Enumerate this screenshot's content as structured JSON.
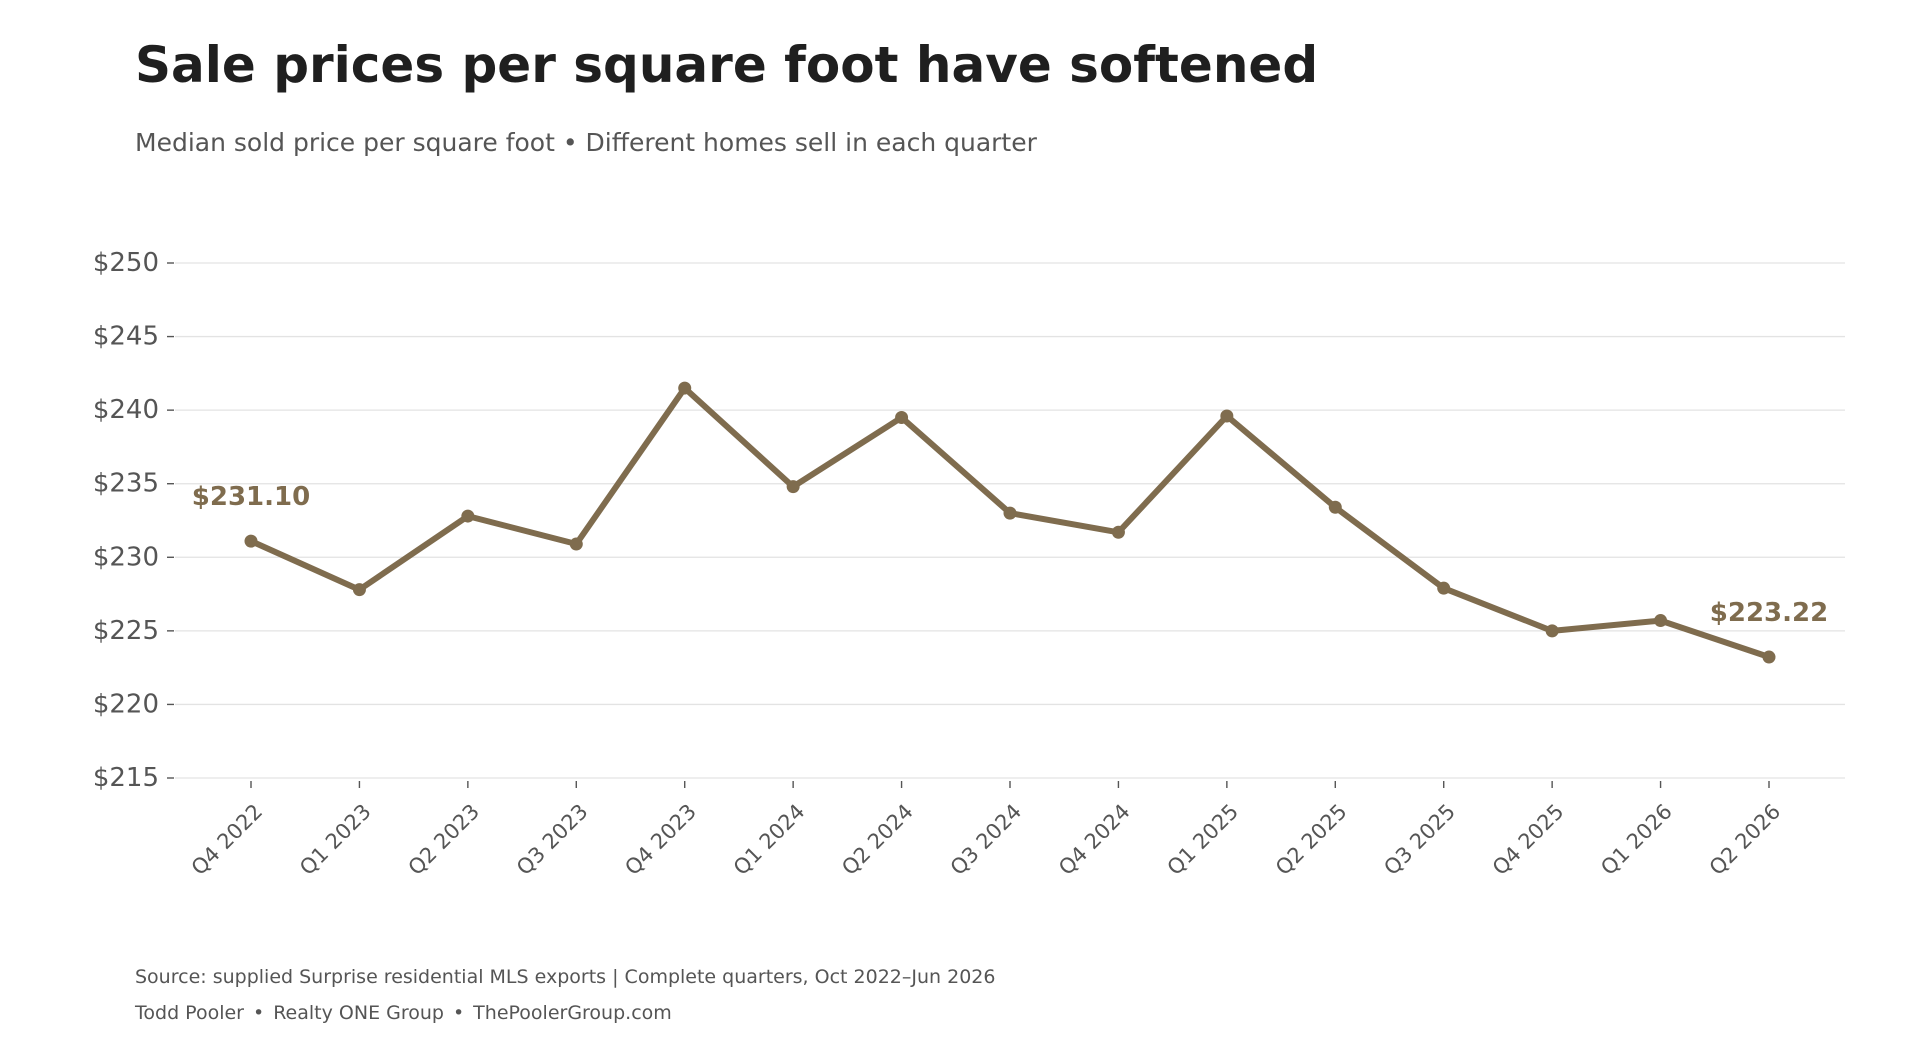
{
  "header": {
    "title": "Sale prices per square foot have softened",
    "subtitle": "Median sold price per square foot • Different homes sell in each quarter"
  },
  "footer": {
    "source": "Source: supplied Surprise residential MLS exports | Complete quarters, Oct 2022–Jun 2026",
    "credit": [
      "Todd Pooler",
      "Realty ONE Group",
      "ThePoolerGroup.com"
    ],
    "separator": "•"
  },
  "colors": {
    "line": "#7f6c4e",
    "grid": "#e3e3e3",
    "axis_text": "#555555"
  },
  "chart_data": {
    "type": "line",
    "title": "Sale prices per square foot have softened",
    "subtitle": "Median sold price per square foot • Different homes sell in each quarter",
    "xlabel": "",
    "ylabel": "",
    "categories": [
      "Q4 2022",
      "Q1 2023",
      "Q2 2023",
      "Q3 2023",
      "Q4 2023",
      "Q1 2024",
      "Q2 2024",
      "Q3 2024",
      "Q4 2024",
      "Q1 2025",
      "Q2 2025",
      "Q3 2025",
      "Q4 2025",
      "Q1 2026",
      "Q2 2026"
    ],
    "values": [
      231.1,
      227.8,
      232.8,
      230.9,
      241.5,
      234.8,
      239.5,
      233.0,
      231.7,
      239.6,
      233.4,
      227.9,
      225.0,
      225.7,
      223.22
    ],
    "ylim": [
      215,
      250
    ],
    "yticks": [
      215,
      220,
      225,
      230,
      235,
      240,
      245,
      250
    ],
    "ytick_labels": [
      "$215",
      "$220",
      "$225",
      "$230",
      "$235",
      "$240",
      "$245",
      "$250"
    ],
    "grid": true,
    "legend": "none",
    "annotations": [
      {
        "index": 0,
        "text": "$231.10"
      },
      {
        "index": 14,
        "text": "$223.22"
      }
    ]
  }
}
